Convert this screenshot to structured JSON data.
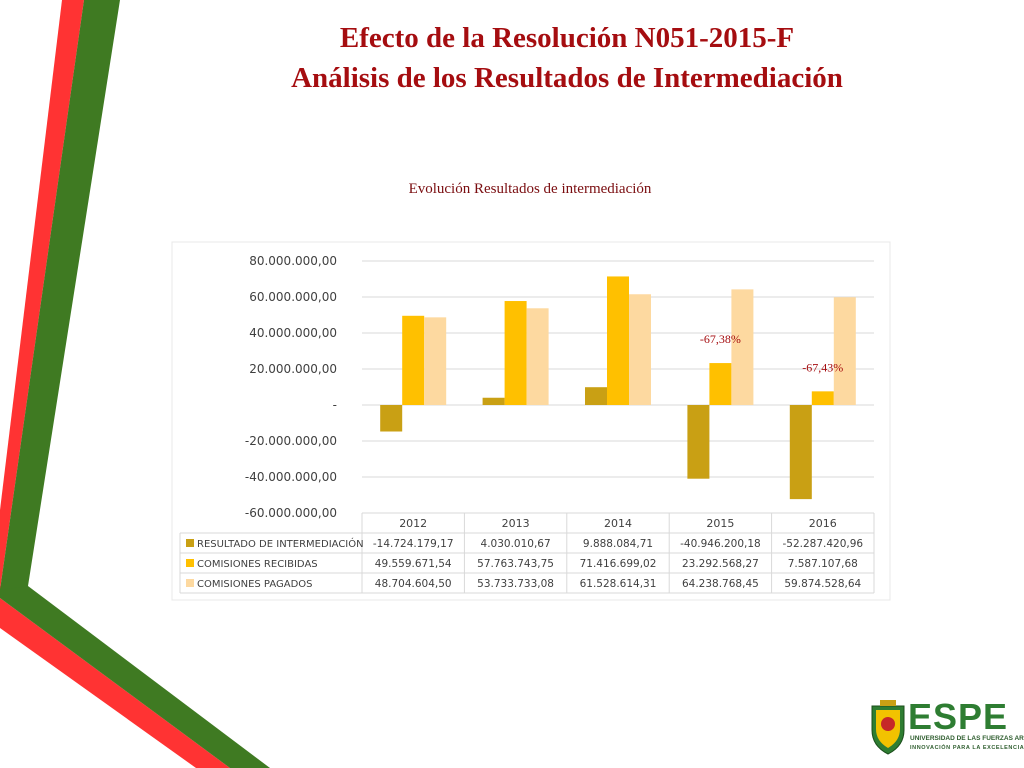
{
  "slide": {
    "title_line1": "Efecto de la Resolución N051-2015-F",
    "title_line2": "Análisis de los Resultados de Intermediación"
  },
  "colors": {
    "title": "#a50d10",
    "stripe_red": "#ff3333",
    "stripe_green": "#3f7a22",
    "series": [
      "#c9a014",
      "#ffc000",
      "#fdd9a0"
    ]
  },
  "logo": {
    "word": "ESPE",
    "subtitle": "UNIVERSIDAD DE LAS FUERZAS ARMADAS",
    "tagline": "INNOVACIÓN PARA LA EXCELENCIA",
    "emblem_icon": "university-crest-icon"
  },
  "chart_data": {
    "type": "bar",
    "title": "Evolución Resultados de intermediación",
    "categories": [
      "2012",
      "2013",
      "2014",
      "2015",
      "2016"
    ],
    "series": [
      {
        "name": "RESULTADO DE INTERMEDIACIÓN",
        "values": [
          -14724179.17,
          4030010.67,
          9888084.71,
          -40946200.18,
          -52287420.96
        ],
        "labels": [
          "-14.724.179,17",
          "4.030.010,67",
          "9.888.084,71",
          "-40.946.200,18",
          "-52.287.420,96"
        ]
      },
      {
        "name": "COMISIONES RECIBIDAS",
        "values": [
          49559671.54,
          57763743.75,
          71416699.02,
          23292568.27,
          7587107.68
        ],
        "labels": [
          "49.559.671,54",
          "57.763.743,75",
          "71.416.699,02",
          "23.292.568,27",
          "7.587.107,68"
        ]
      },
      {
        "name": "COMISIONES PAGADOS",
        "values": [
          48704604.5,
          53733733.08,
          61528614.31,
          64238768.45,
          59874528.64
        ],
        "labels": [
          "48.704.604,50",
          "53.733.733,08",
          "61.528.614,31",
          "64.238.768,45",
          "59.874.528,64"
        ]
      }
    ],
    "y_ticks": [
      "80.000.000,00",
      "60.000.000,00",
      "40.000.000,00",
      "20.000.000,00",
      "-",
      "-20.000.000,00",
      "-40.000.000,00",
      "-60.000.000,00"
    ],
    "y_tick_values": [
      80000000,
      60000000,
      40000000,
      20000000,
      0,
      -20000000,
      -40000000,
      -60000000
    ],
    "ylim": [
      -60000000,
      80000000
    ],
    "grid": true,
    "legend": "data-table",
    "annotations": [
      {
        "category": "2015",
        "text": "-67,38%"
      },
      {
        "category": "2016",
        "text": "-67,43%"
      }
    ]
  }
}
